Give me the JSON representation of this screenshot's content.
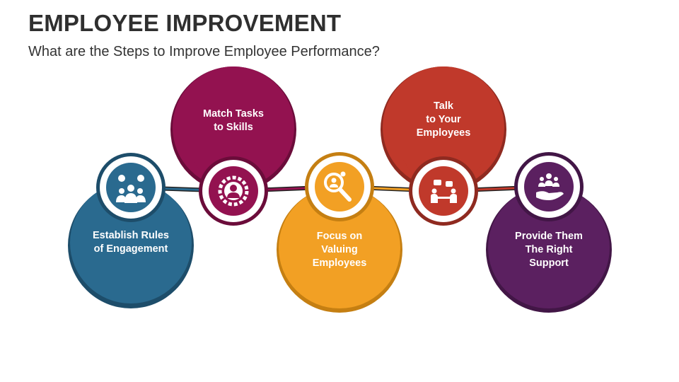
{
  "header": {
    "title": "EMPLOYEE IMPROVEMENT",
    "subtitle": "What are the Steps to Improve Employee Performance?"
  },
  "steps": [
    {
      "label": "Establish Rules\nof Engagement",
      "color": "#2a6a8f",
      "dark": "#1d4d6a",
      "icon": "team-icon"
    },
    {
      "label": "Match Tasks\nto Skills",
      "color": "#931250",
      "dark": "#6b0c3a",
      "icon": "gear-person-icon"
    },
    {
      "label": "Focus on\nValuing\nEmployees",
      "color": "#f2a024",
      "dark": "#c57f12",
      "icon": "magnifier-person-icon"
    },
    {
      "label": "Talk\nto Your\nEmployees",
      "color": "#c0392b",
      "dark": "#8f2a20",
      "icon": "meeting-icon"
    },
    {
      "label": "Provide Them\nThe Right\nSupport",
      "color": "#5b2060",
      "dark": "#421646",
      "icon": "support-hand-icon"
    }
  ]
}
